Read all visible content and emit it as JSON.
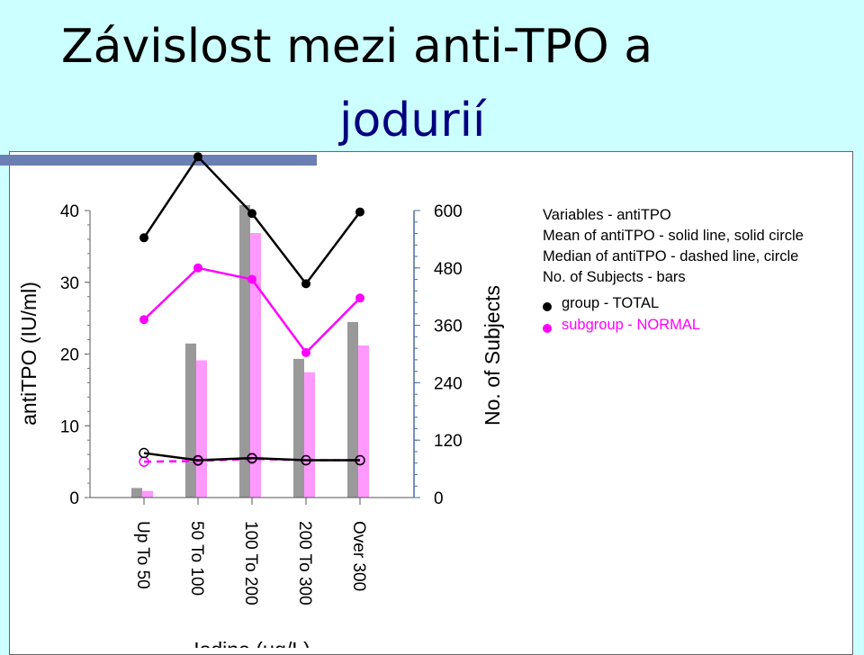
{
  "slide": {
    "title_line1": "Závislost mezi anti-TPO a",
    "title_line2": "jodurií"
  },
  "chart_data": {
    "type": "bar",
    "xlabel": "Iodine (μg/L)",
    "ylabel": "antiTPO (IU/ml)",
    "y2label": "No. of Subjects",
    "categories": [
      "Up To 50",
      "50 To 100",
      "100 To 200",
      "200 To 300",
      "Over 300"
    ],
    "ylim": [
      0,
      40
    ],
    "yticks": [
      0,
      10,
      20,
      30,
      40
    ],
    "y2lim": [
      0,
      600
    ],
    "y2ticks": [
      0,
      120,
      240,
      360,
      480,
      600
    ],
    "bars_subjects": [
      {
        "name": "group - TOTAL",
        "color": "#999999",
        "values": [
          20,
          322,
          612,
          290,
          367
        ]
      },
      {
        "name": "subgroup - NORMAL",
        "color": "#ff99ff",
        "values": [
          14,
          287,
          553,
          262,
          318
        ]
      }
    ],
    "mean_antiTPO": [
      {
        "name": "group - TOTAL",
        "color": "#000000",
        "values": [
          36.2,
          47.5,
          39.6,
          29.8,
          39.8
        ]
      },
      {
        "name": "subgroup - NORMAL",
        "color": "#ff00ff",
        "values": [
          24.8,
          32.0,
          30.4,
          20.2,
          27.8
        ]
      }
    ],
    "median_antiTPO": [
      {
        "name": "group - TOTAL",
        "color": "#000000",
        "values": [
          6.2,
          5.2,
          5.5,
          5.2,
          5.2
        ]
      },
      {
        "name": "subgroup - NORMAL",
        "color": "#ff00ff",
        "values": [
          5.0,
          5.1,
          5.4,
          5.2,
          5.2
        ]
      }
    ],
    "legend": {
      "lines": [
        "Variables - antiTPO",
        "Mean of antiTPO - solid line, solid circle",
        "Median of antiTPO - dashed line, circle",
        "No. of Subjects - bars"
      ],
      "entries": [
        {
          "label": "group - TOTAL",
          "color": "#000000"
        },
        {
          "label": "subgroup - NORMAL",
          "color": "#ff00ff"
        }
      ]
    }
  }
}
